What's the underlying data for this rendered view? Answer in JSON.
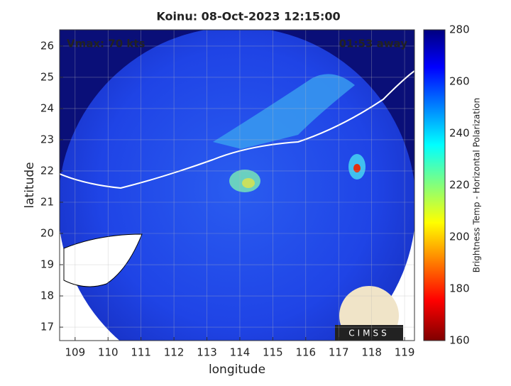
{
  "map": {
    "title": "Koinu: 08-Oct-2023 12:15:00",
    "annotation_left": "Vmax: 70 kts",
    "annotation_right": "01:53 away",
    "xlabel": "longitude",
    "ylabel": "latitude",
    "xlim": [
      108.53,
      119.3
    ],
    "ylim": [
      16.57,
      26.52
    ],
    "xticks": [
      109,
      110,
      111,
      112,
      113,
      114,
      115,
      116,
      117,
      118,
      119
    ],
    "yticks": [
      17,
      18,
      19,
      20,
      21,
      22,
      23,
      24,
      25,
      26
    ],
    "grid": true,
    "colorbar": {
      "label": "Brightness Temp - Horizontal Polarization",
      "lim": [
        160,
        280
      ],
      "ticks": [
        160,
        180,
        200,
        220,
        240,
        260,
        280
      ]
    },
    "logo": "CIMSS"
  }
}
